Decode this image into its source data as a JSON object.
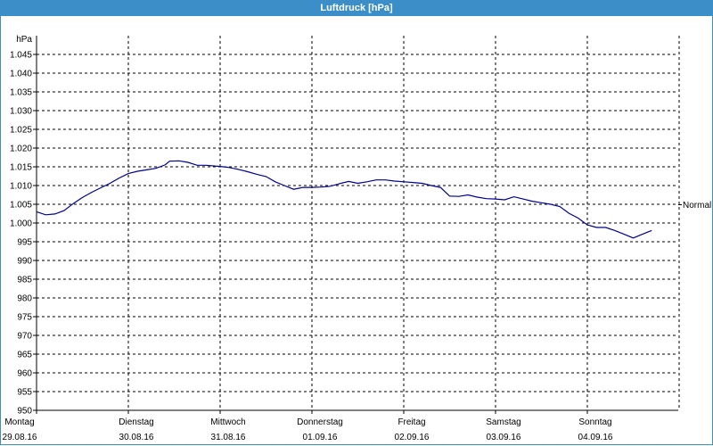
{
  "window": {
    "title": "Luftdruck [hPa]"
  },
  "chart_data": {
    "type": "line",
    "title": "Luftdruck [hPa]",
    "ylabel": "hPa",
    "xlabel": "",
    "ylim": [
      950,
      1050
    ],
    "yticks": [
      "950",
      "955",
      "960",
      "965",
      "970",
      "975",
      "980",
      "985",
      "990",
      "995",
      "1.000",
      "1.005",
      "1.010",
      "1.015",
      "1.020",
      "1.025",
      "1.030",
      "1.035",
      "1.040",
      "1.045"
    ],
    "xticks": [
      {
        "day": "Montag",
        "date": "29.08.16"
      },
      {
        "day": "Dienstag",
        "date": "30.08.16"
      },
      {
        "day": "Mittwoch",
        "date": "31.08.16"
      },
      {
        "day": "Donnerstag",
        "date": "01.09.16"
      },
      {
        "day": "Freitag",
        "date": "02.09.16"
      },
      {
        "day": "Samstag",
        "date": "03.09.16"
      },
      {
        "day": "Sonntag",
        "date": "04.09.16"
      }
    ],
    "xlim_days": [
      0,
      7
    ],
    "grid": true,
    "reference_line": {
      "label": "Normal",
      "value": 1005
    },
    "series": [
      {
        "color": "#00008b",
        "points": [
          [
            0.0,
            1003.0
          ],
          [
            0.1,
            1002.2
          ],
          [
            0.2,
            1002.4
          ],
          [
            0.3,
            1003.3
          ],
          [
            0.4,
            1005.2
          ],
          [
            0.5,
            1006.8
          ],
          [
            0.6,
            1008.2
          ],
          [
            0.7,
            1009.4
          ],
          [
            0.8,
            1010.6
          ],
          [
            0.9,
            1012.0
          ],
          [
            1.0,
            1013.2
          ],
          [
            1.1,
            1013.8
          ],
          [
            1.2,
            1014.2
          ],
          [
            1.3,
            1014.6
          ],
          [
            1.4,
            1015.5
          ],
          [
            1.45,
            1016.5
          ],
          [
            1.55,
            1016.6
          ],
          [
            1.65,
            1016.2
          ],
          [
            1.75,
            1015.4
          ],
          [
            1.85,
            1015.4
          ],
          [
            2.0,
            1015.1
          ],
          [
            2.1,
            1014.8
          ],
          [
            2.2,
            1014.3
          ],
          [
            2.3,
            1013.7
          ],
          [
            2.4,
            1013.0
          ],
          [
            2.5,
            1012.4
          ],
          [
            2.6,
            1011.0
          ],
          [
            2.7,
            1010.0
          ],
          [
            2.8,
            1009.0
          ],
          [
            2.9,
            1009.5
          ],
          [
            3.0,
            1009.5
          ],
          [
            3.1,
            1009.6
          ],
          [
            3.2,
            1009.8
          ],
          [
            3.3,
            1010.5
          ],
          [
            3.4,
            1011.1
          ],
          [
            3.5,
            1010.6
          ],
          [
            3.6,
            1011.0
          ],
          [
            3.7,
            1011.5
          ],
          [
            3.8,
            1011.5
          ],
          [
            3.9,
            1011.2
          ],
          [
            4.0,
            1011.0
          ],
          [
            4.1,
            1010.8
          ],
          [
            4.2,
            1010.6
          ],
          [
            4.3,
            1010.0
          ],
          [
            4.4,
            1009.5
          ],
          [
            4.5,
            1007.2
          ],
          [
            4.6,
            1007.1
          ],
          [
            4.7,
            1007.5
          ],
          [
            4.8,
            1006.9
          ],
          [
            4.9,
            1006.5
          ],
          [
            5.0,
            1006.4
          ],
          [
            5.1,
            1006.2
          ],
          [
            5.2,
            1007.0
          ],
          [
            5.3,
            1006.4
          ],
          [
            5.4,
            1005.8
          ],
          [
            5.5,
            1005.4
          ],
          [
            5.6,
            1005.0
          ],
          [
            5.7,
            1004.4
          ],
          [
            5.8,
            1002.6
          ],
          [
            5.9,
            1001.3
          ],
          [
            6.0,
            999.5
          ],
          [
            6.1,
            998.8
          ],
          [
            6.2,
            998.8
          ],
          [
            6.3,
            998.0
          ],
          [
            6.4,
            997.0
          ],
          [
            6.5,
            996.0
          ],
          [
            6.6,
            997.0
          ],
          [
            6.7,
            998.0
          ]
        ]
      }
    ]
  }
}
